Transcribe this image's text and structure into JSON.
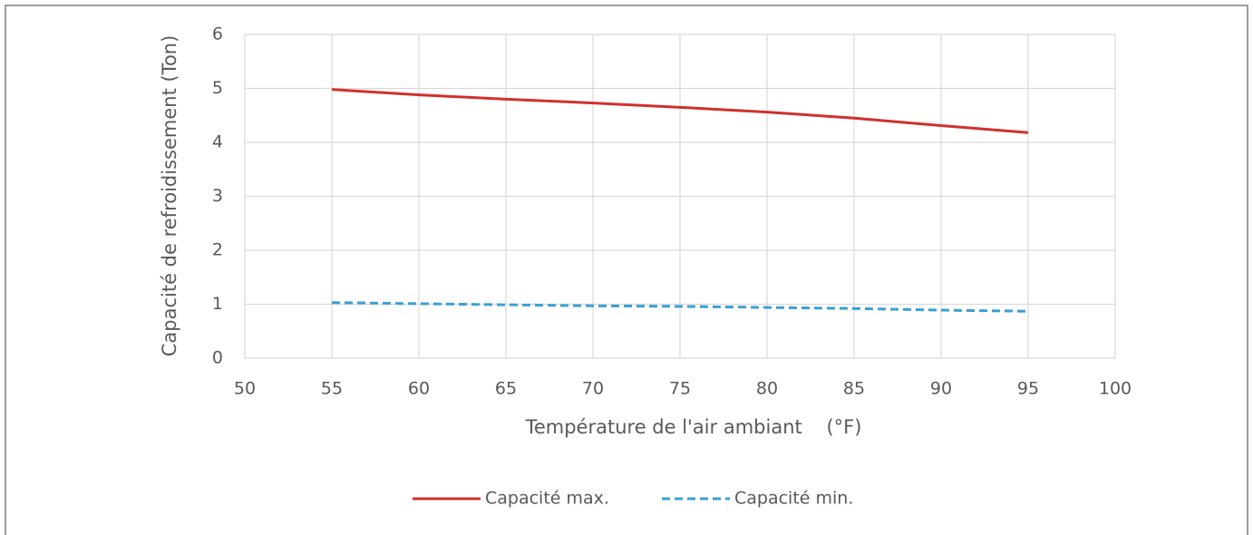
{
  "chart_data": {
    "type": "line",
    "x_label": "Température de l'air ambiant    (°F)",
    "y_label": "Capacité de refroidissement (Ton)",
    "x": [
      55,
      60,
      65,
      70,
      75,
      80,
      85,
      90,
      95
    ],
    "series": [
      {
        "name": "Capacité max.",
        "color": "#d0312d",
        "dashed": false,
        "values": [
          4.98,
          4.88,
          4.8,
          4.73,
          4.65,
          4.56,
          4.45,
          4.31,
          4.18
        ]
      },
      {
        "name": "Capacité min.",
        "color": "#3aa0d5",
        "dashed": true,
        "values": [
          1.03,
          1.01,
          0.99,
          0.97,
          0.96,
          0.94,
          0.92,
          0.89,
          0.87
        ]
      }
    ],
    "xlim": [
      50,
      100
    ],
    "xticks": [
      50,
      55,
      60,
      65,
      70,
      75,
      80,
      85,
      90,
      95,
      100
    ],
    "ylim": [
      0,
      6
    ],
    "yticks": [
      0,
      1,
      2,
      3,
      4,
      5,
      6
    ],
    "grid": true,
    "legend": "bottom"
  }
}
